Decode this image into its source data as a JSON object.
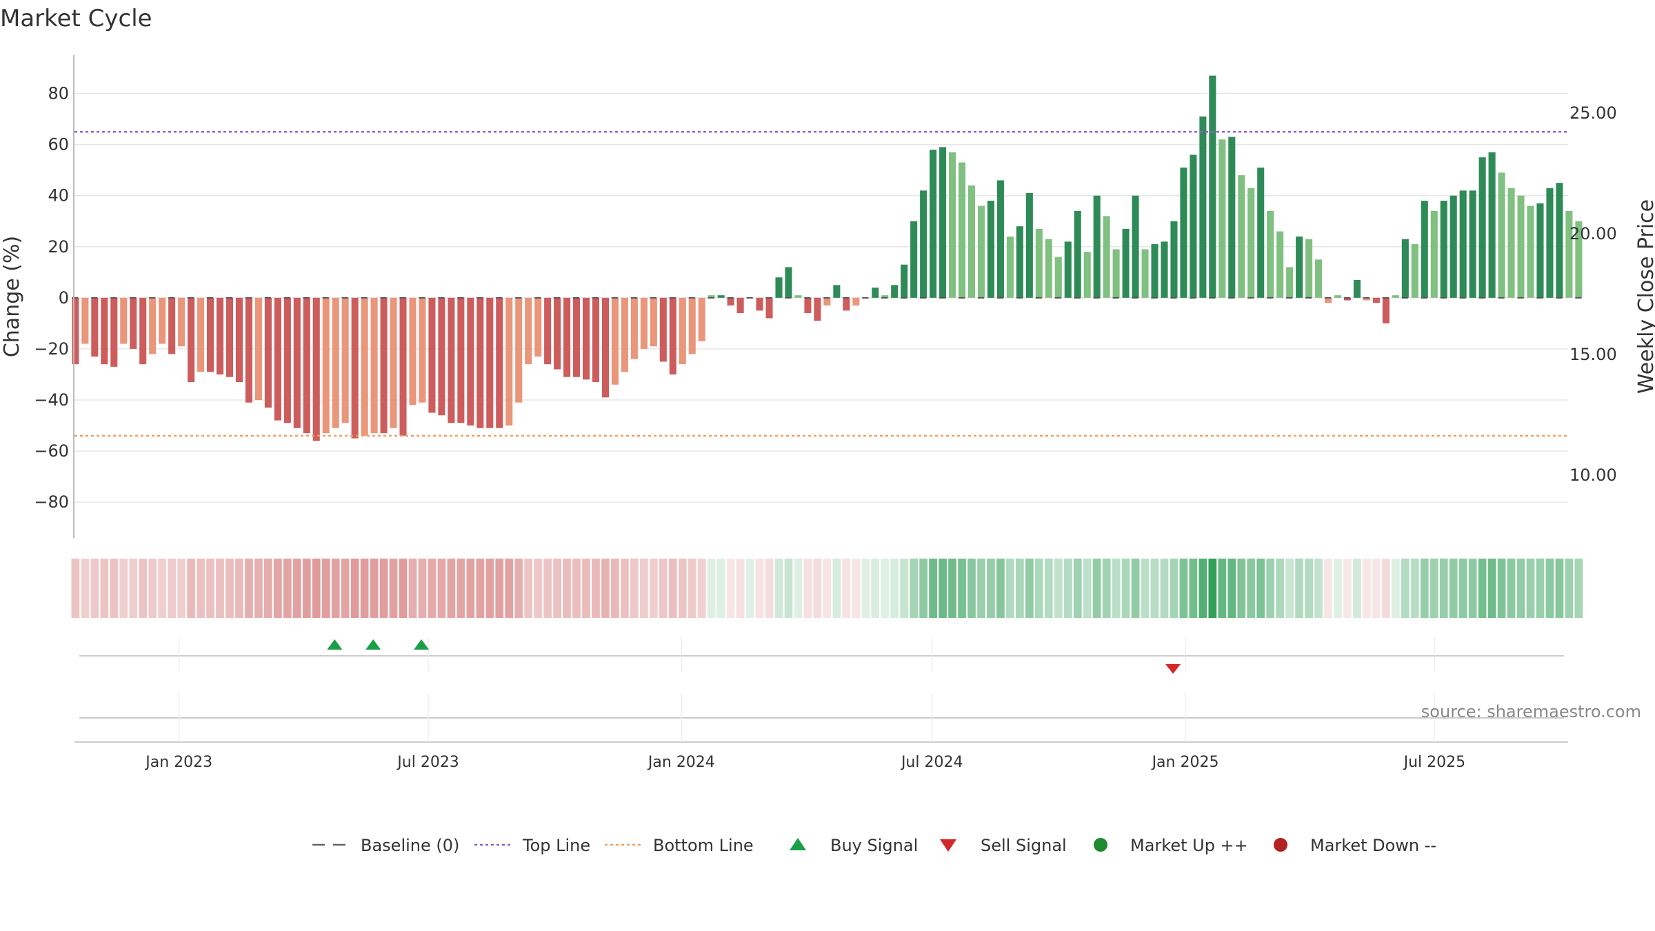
{
  "chart_data": {
    "type": "bar",
    "title": "Market Cycle",
    "ylabel": "Change (%)",
    "y2label": "Weekly Close Price",
    "ylim": [
      -94,
      95
    ],
    "y2lim": [
      7.4,
      27.4
    ],
    "yticks": [
      -80,
      -60,
      -40,
      -20,
      0,
      20,
      40,
      60,
      80
    ],
    "y2ticks": [
      "10.00",
      "15.00",
      "20.00",
      "25.00"
    ],
    "top_line": 65,
    "bottom_line": -54,
    "x_start": "2022-10-17",
    "x_end": "2025-10-06",
    "xticks": [
      {
        "date": "2023-01-01",
        "label": "Jan 2023"
      },
      {
        "date": "2023-07-01",
        "label": "Jul 2023"
      },
      {
        "date": "2024-01-01",
        "label": "Jan 2024"
      },
      {
        "date": "2024-07-01",
        "label": "Jul 2024"
      },
      {
        "date": "2025-01-01",
        "label": "Jan 2025"
      },
      {
        "date": "2025-07-01",
        "label": "Jul 2025"
      }
    ],
    "weeks_start": "2022-10-17",
    "values": [
      -26,
      -18,
      -23,
      -26,
      -27,
      -18,
      -20,
      -26,
      -22,
      -18,
      -22,
      -19,
      -33,
      -29,
      -29,
      -30,
      -31,
      -33,
      -41,
      -40,
      -43,
      -48,
      -49,
      -51,
      -53,
      -56,
      -53,
      -51,
      -49,
      -55,
      -54,
      -53,
      -53,
      -51,
      -54,
      -42,
      -41,
      -45,
      -46,
      -49,
      -49,
      -50,
      -51,
      -51,
      -51,
      -50,
      -41,
      -26,
      -23,
      -26,
      -28,
      -31,
      -31,
      -32,
      -33,
      -39,
      -34,
      -29,
      -24,
      -20,
      -19,
      -25,
      -30,
      -26,
      -22,
      -17,
      1,
      1,
      -3,
      -6,
      0,
      -5,
      -8,
      8,
      12,
      1,
      -6,
      -9,
      -3,
      5,
      -5,
      -3,
      0,
      4,
      1,
      5,
      13,
      30,
      42,
      58,
      59,
      57,
      53,
      44,
      36,
      38,
      46,
      24,
      28,
      41,
      27,
      23,
      16,
      22,
      34,
      18,
      40,
      32,
      19,
      27,
      40,
      19,
      21,
      22,
      30,
      51,
      56,
      71,
      87,
      62,
      63,
      48,
      43,
      51,
      34,
      26,
      12,
      24,
      23,
      15,
      -2,
      1,
      -1,
      7,
      -1,
      -2,
      -10,
      1,
      23,
      21,
      38,
      34,
      38,
      40,
      42,
      42,
      55,
      57,
      49,
      43,
      40,
      36,
      37,
      43,
      45,
      34,
      30
    ],
    "buy_signals": [
      "2023-04-24",
      "2023-05-22",
      "2023-06-26"
    ],
    "sell_signals": [
      "2024-12-23"
    ],
    "legend": [
      {
        "label": "Baseline (0)",
        "kind": "dash",
        "color": "#666666"
      },
      {
        "label": "Top Line",
        "kind": "dot",
        "color": "#8e5fd3"
      },
      {
        "label": "Bottom Line",
        "kind": "dot",
        "color": "#f0a060"
      },
      {
        "label": "Buy Signal",
        "kind": "tri-up",
        "color": "#1a9e46"
      },
      {
        "label": "Sell Signal",
        "kind": "tri-down",
        "color": "#d62728"
      },
      {
        "label": "Market Up ++",
        "kind": "circle",
        "color": "#1f8a2e"
      },
      {
        "label": "Market Down --",
        "kind": "circle",
        "color": "#b22222"
      }
    ],
    "source": "source: sharemaestro.com",
    "colors": {
      "up_strong": "#2e8b57",
      "up_light": "#80c080",
      "down_strong": "#cd5c5c",
      "down_light": "#e9967a",
      "top_line": "#8e5fd3",
      "bottom_line": "#f0a060"
    }
  }
}
